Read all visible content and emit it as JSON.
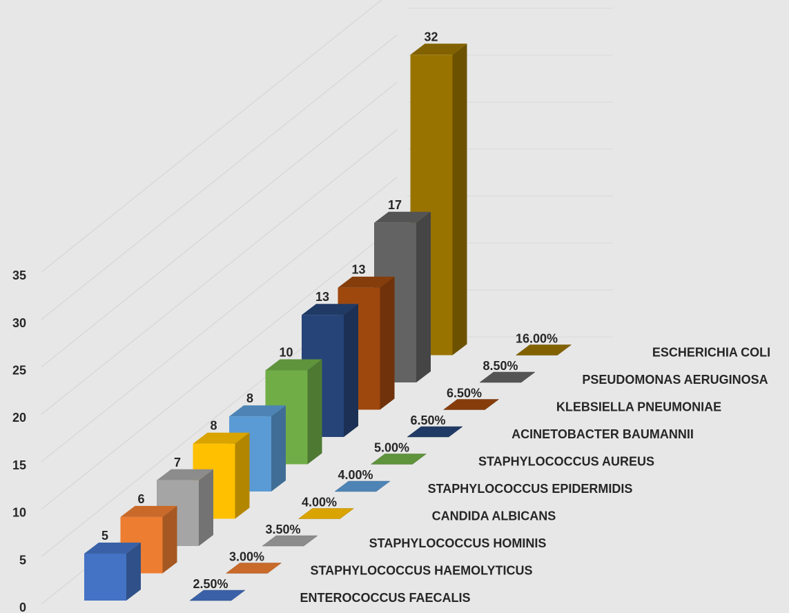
{
  "chart_data": {
    "type": "bar",
    "style": "3d-stacked-depth",
    "categories": [
      "ENTEROCOCCUS FAECALIS",
      "STAPHYLOCOCCUS HAEMOLYTICUS",
      "STAPHYLOCOCCUS HOMINIS",
      "CANDIDA ALBICANS",
      "STAPHYLOCOCCUS EPIDERMIDIS",
      "STAPHYLOCOCCUS AUREUS",
      "ACINETOBACTER BAUMANNII",
      "KLEBSIELLA PNEUMONIAE",
      "PSEUDOMONAS AERUGINOSA",
      "ESCHERICHIA COLI"
    ],
    "series": [
      {
        "values": [
          5,
          6,
          7,
          8,
          8,
          10,
          13,
          13,
          17,
          32
        ]
      },
      {
        "values": [
          2.5,
          3,
          3.5,
          4,
          4,
          5,
          6.5,
          6.5,
          8.5,
          16
        ],
        "labels": [
          "2.50%",
          "3.00%",
          "3.50%",
          "4.00%",
          "4.00%",
          "5.00%",
          "6.50%",
          "6.50%",
          "8.50%",
          "16.00%"
        ]
      }
    ],
    "colors": [
      "#4472c4",
      "#ed7d31",
      "#a5a5a5",
      "#ffc000",
      "#5b9bd5",
      "#70ad47",
      "#264478",
      "#9e480e",
      "#636363",
      "#997300"
    ],
    "yticks": [
      "0",
      "5",
      "10",
      "15",
      "20",
      "25",
      "30",
      "35"
    ],
    "ylim": [
      0,
      35
    ],
    "grid": true,
    "legend": "none"
  }
}
